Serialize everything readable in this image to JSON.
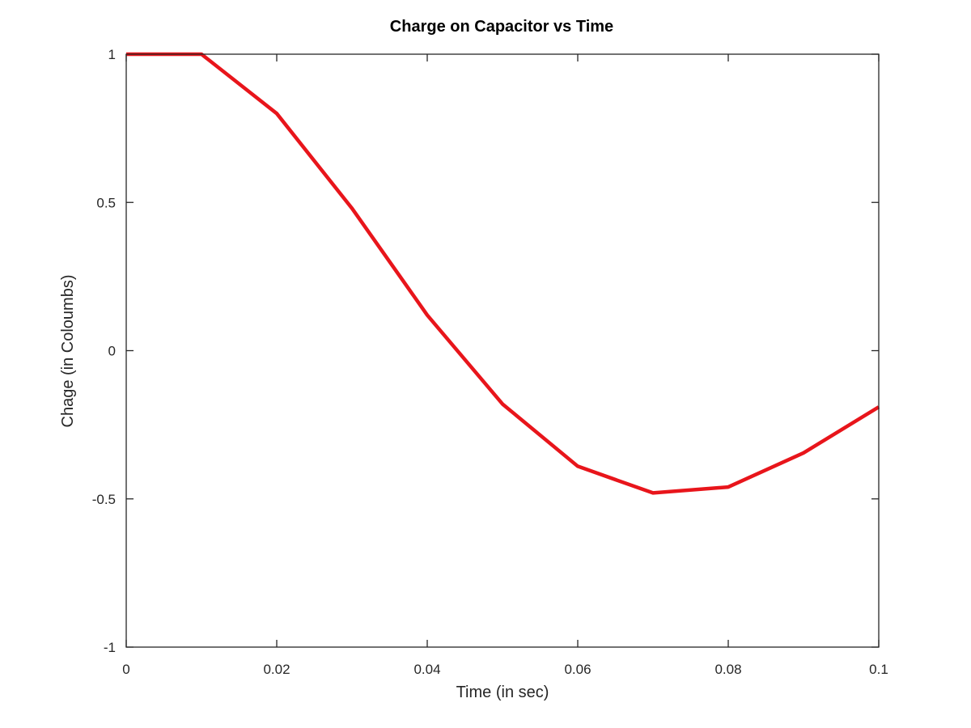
{
  "chart_data": {
    "type": "line",
    "title": "Charge on Capacitor vs Time",
    "xlabel": "Time (in sec)",
    "ylabel": "Chage (in Coloumbs)",
    "xlim": [
      0,
      0.1
    ],
    "ylim": [
      -1,
      1
    ],
    "xticks": [
      0,
      0.02,
      0.04,
      0.06,
      0.08,
      0.1
    ],
    "xtick_labels": [
      "0",
      "0.02",
      "0.04",
      "0.06",
      "0.08",
      "0.1"
    ],
    "yticks": [
      -1,
      -0.5,
      0,
      0.5,
      1
    ],
    "ytick_labels": [
      "-1",
      "-0.5",
      "0",
      "0.5",
      "1"
    ],
    "grid": false,
    "series": [
      {
        "color": "#e8151b",
        "x": [
          0,
          0.01,
          0.02,
          0.03,
          0.04,
          0.05,
          0.06,
          0.07,
          0.08,
          0.09,
          0.1
        ],
        "y": [
          1.0,
          1.0,
          0.8,
          0.48,
          0.12,
          -0.18,
          -0.39,
          -0.48,
          -0.46,
          -0.345,
          -0.19
        ]
      }
    ]
  }
}
